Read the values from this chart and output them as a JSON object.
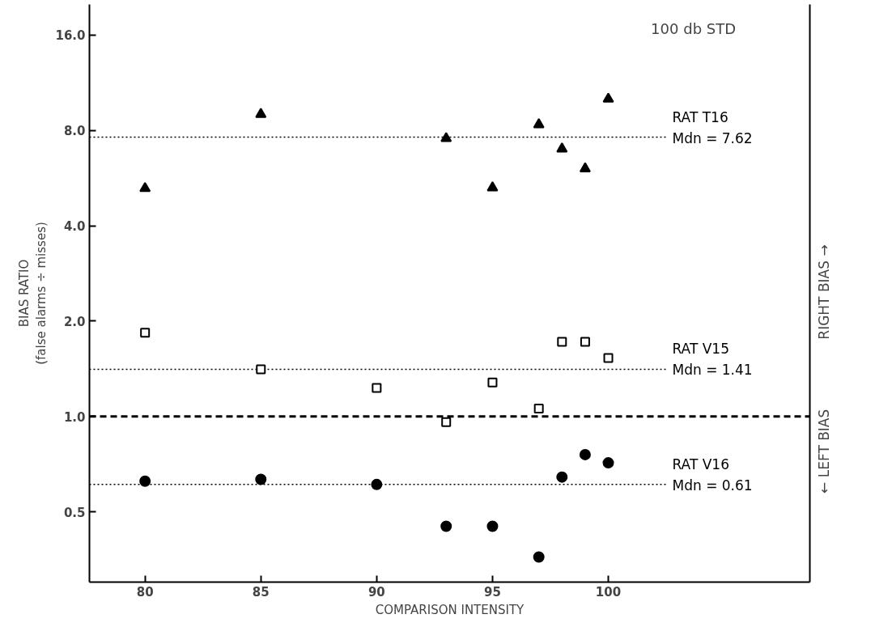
{
  "chart_data": {
    "type": "scatter",
    "xlabel": "COMPARISON INTENSITY",
    "ylabel": "BIAS RATIO\n(false alarms ÷ misses)",
    "log": "y",
    "xlim": [
      77.6,
      108.7
    ],
    "ylim": [
      0.3,
      20
    ],
    "xticks": [
      80,
      85,
      90,
      95,
      100
    ],
    "yticks": [
      {
        "value": 0.5,
        "label": "0.5"
      },
      {
        "value": 1,
        "label": "1.0"
      },
      {
        "value": 2,
        "label": "2.0"
      },
      {
        "value": 4,
        "label": "4.0"
      },
      {
        "value": 8,
        "label": "8.0"
      },
      {
        "value": 16,
        "label": "16.0"
      }
    ],
    "grid": false,
    "series": [
      {
        "color": "#000000",
        "marker": "triangle",
        "x": [
          80,
          85,
          93,
          95,
          97,
          98,
          99,
          100
        ],
        "values": [
          5.25,
          9.0,
          7.55,
          5.28,
          8.35,
          7.0,
          6.06,
          10.06
        ]
      },
      {
        "color": "#000000",
        "marker": "square",
        "x": [
          80,
          85,
          90,
          93,
          95,
          97,
          98,
          99,
          100
        ],
        "values": [
          1.84,
          1.41,
          1.23,
          0.96,
          1.28,
          1.06,
          1.72,
          1.72,
          1.53
        ]
      },
      {
        "color": "#000000",
        "marker": "circle",
        "x": [
          80,
          85,
          90,
          93,
          95,
          97,
          98,
          99,
          100
        ],
        "values": [
          0.625,
          0.633,
          0.61,
          0.45,
          0.45,
          0.36,
          0.644,
          0.758,
          0.714
        ]
      }
    ],
    "ref_lines": [
      {
        "axis": "y",
        "value": 7.62,
        "label": "RAT  T16\nMdn = 7.62",
        "line_style": "dotted"
      },
      {
        "axis": "y",
        "value": 1.41,
        "label": "RAT  V15\nMdn = 1.41",
        "line_style": "dotted"
      },
      {
        "axis": "y",
        "value": 0.61,
        "label": "RAT  V16\nMdn = 0.61",
        "line_style": "dotted"
      },
      {
        "axis": "y",
        "value": 1.0,
        "line_style": "dashed"
      }
    ],
    "annotations": [
      "100  db  STD",
      "← LEFT BIAS",
      "RIGHT BIAS →"
    ]
  }
}
